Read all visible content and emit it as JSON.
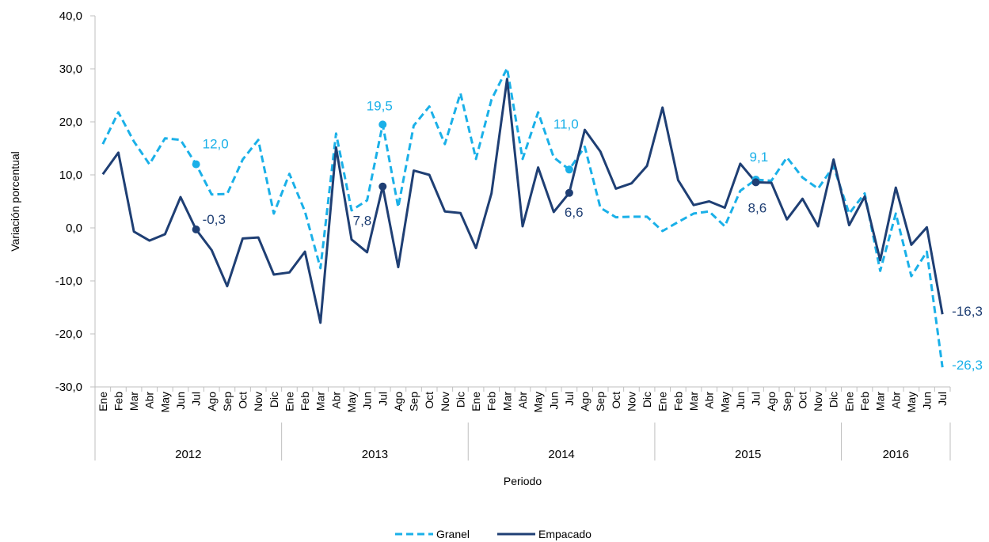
{
  "chart_data": {
    "type": "line",
    "ylabel": "Variación porcentual",
    "xlabel": "Periodo",
    "ylim": [
      -30,
      40
    ],
    "yticks": [
      -30,
      -20,
      -10,
      0,
      10,
      20,
      30,
      40
    ],
    "ytick_labels": [
      "-30,0",
      "-20,0",
      "-10,0",
      "0,0",
      "10,0",
      "20,0",
      "30,0",
      "40,0"
    ],
    "grid": false,
    "legend_position": "bottom",
    "x": [
      "Ene",
      "Feb",
      "Mar",
      "Abr",
      "May",
      "Jun",
      "Jul",
      "Ago",
      "Sep",
      "Oct",
      "Nov",
      "Dic",
      "Ene",
      "Feb",
      "Mar",
      "Abr",
      "May",
      "Jun",
      "Jul",
      "Ago",
      "Sep",
      "Oct",
      "Nov",
      "Dic",
      "Ene",
      "Feb",
      "Mar",
      "Abr",
      "May",
      "Jun",
      "Jul",
      "Ago",
      "Sep",
      "Oct",
      "Nov",
      "Dic",
      "Ene",
      "Feb",
      "Mar",
      "Abr",
      "May",
      "Jun",
      "Jul",
      "Ago",
      "Sep",
      "Oct",
      "Nov",
      "Dic",
      "Ene",
      "Feb",
      "Mar",
      "Abr",
      "May",
      "Jun",
      "Jul"
    ],
    "years": [
      {
        "label": "2012",
        "months": 12
      },
      {
        "label": "2013",
        "months": 12
      },
      {
        "label": "2014",
        "months": 12
      },
      {
        "label": "2015",
        "months": 12
      },
      {
        "label": "2016",
        "months": 7
      }
    ],
    "series": [
      {
        "name": "Granel",
        "color": "#1ab0e8",
        "dash": "dashed",
        "values": [
          15.8,
          21.8,
          16.3,
          12.0,
          16.9,
          16.6,
          12.0,
          6.3,
          6.4,
          12.9,
          16.6,
          2.7,
          10.2,
          3.1,
          -7.6,
          17.8,
          3.3,
          5.2,
          19.5,
          3.9,
          19.3,
          22.9,
          15.8,
          25.4,
          13.0,
          24.2,
          30.1,
          13.0,
          21.8,
          13.3,
          11.0,
          15.3,
          3.8,
          2.0,
          2.1,
          2.1,
          -0.6,
          1.1,
          2.7,
          3.1,
          0.3,
          7.0,
          9.1,
          8.9,
          13.3,
          9.5,
          7.4,
          11.6,
          2.7,
          6.5,
          -8.1,
          2.7,
          -9.1,
          -4.5,
          -26.3
        ]
      },
      {
        "name": "Empacado",
        "color": "#1f3f74",
        "dash": "solid",
        "values": [
          10.1,
          14.2,
          -0.7,
          -2.4,
          -1.2,
          5.8,
          -0.3,
          -4.2,
          -11.0,
          -2.0,
          -1.8,
          -8.8,
          -8.4,
          -4.5,
          -17.9,
          15.2,
          -2.2,
          -4.6,
          7.8,
          -7.4,
          10.8,
          10.0,
          3.1,
          2.8,
          -3.8,
          6.5,
          28.1,
          0.3,
          11.4,
          3.0,
          6.6,
          18.5,
          14.4,
          7.4,
          8.4,
          11.7,
          22.7,
          9.0,
          4.3,
          5.0,
          3.8,
          12.1,
          8.6,
          8.5,
          1.6,
          5.5,
          0.3,
          12.9,
          0.5,
          5.9,
          -6.1,
          7.6,
          -3.2,
          0.1,
          -16.3
        ]
      }
    ],
    "annotations": [
      {
        "series": "Granel",
        "index": 6,
        "text": "12,0"
      },
      {
        "series": "Granel",
        "index": 18,
        "text": "19,5"
      },
      {
        "series": "Granel",
        "index": 30,
        "text": "11,0"
      },
      {
        "series": "Granel",
        "index": 42,
        "text": "9,1"
      },
      {
        "series": "Granel",
        "index": 54,
        "text": "-26,3"
      },
      {
        "series": "Empacado",
        "index": 6,
        "text": "-0,3"
      },
      {
        "series": "Empacado",
        "index": 18,
        "text": "7,8"
      },
      {
        "series": "Empacado",
        "index": 30,
        "text": "6,6"
      },
      {
        "series": "Empacado",
        "index": 42,
        "text": "8,6"
      },
      {
        "series": "Empacado",
        "index": 54,
        "text": "-16,3"
      }
    ]
  }
}
